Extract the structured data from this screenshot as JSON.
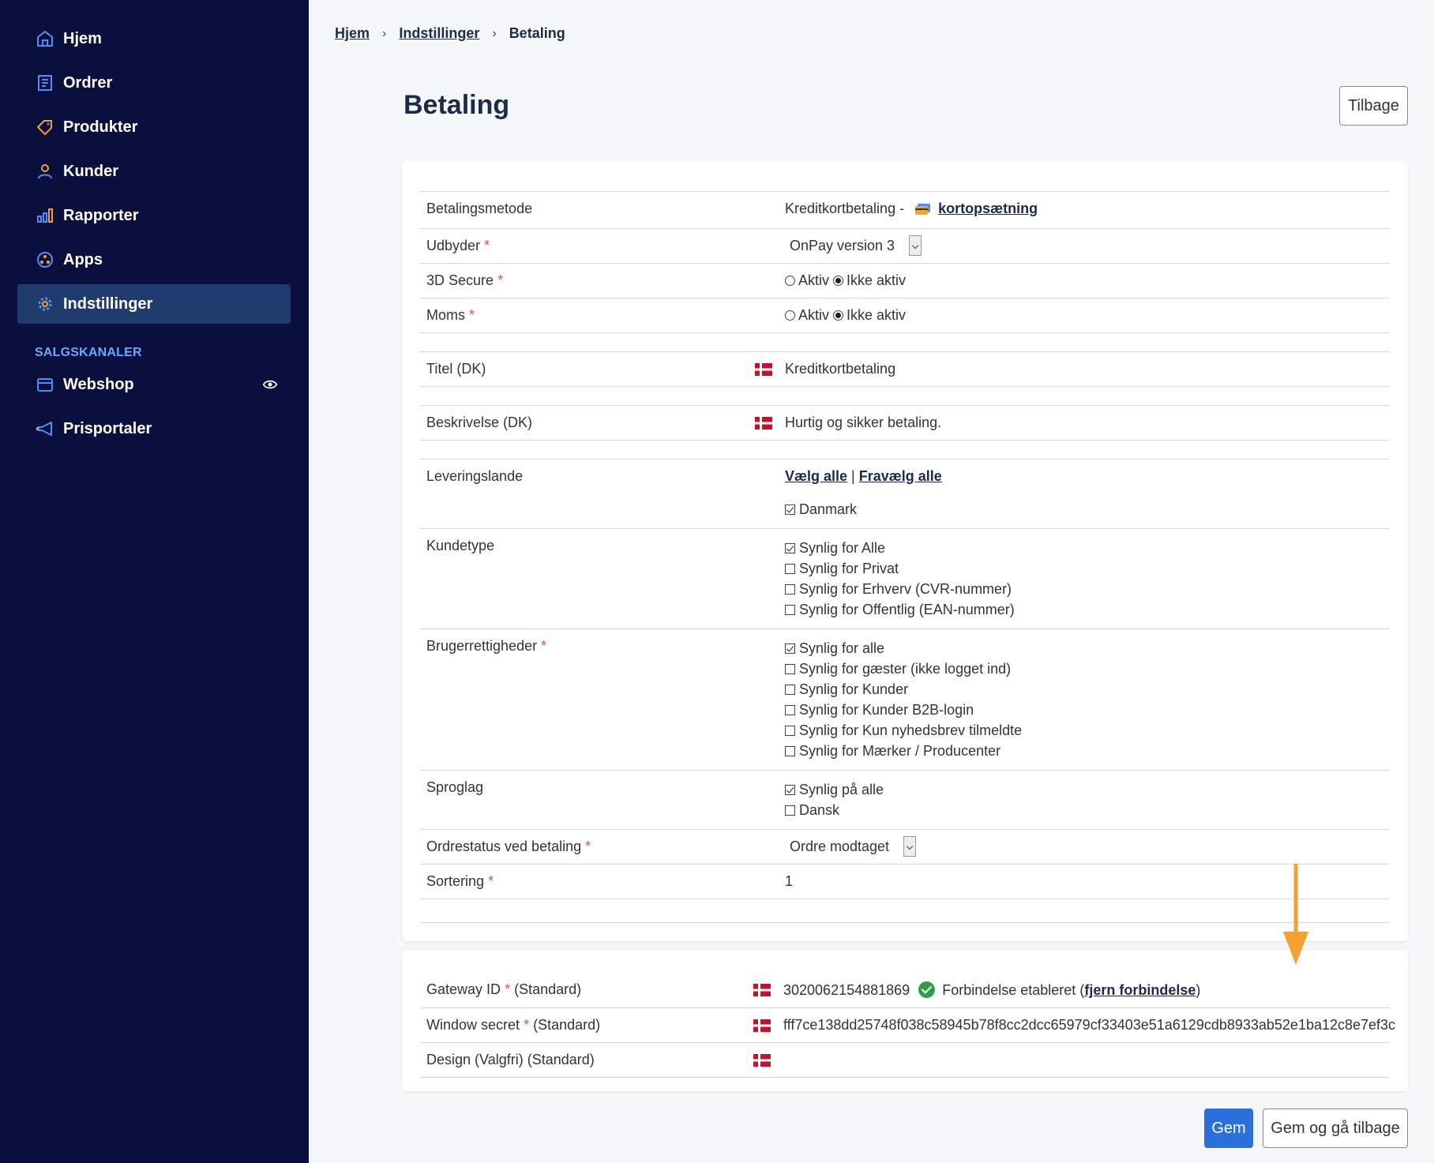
{
  "sidebar": {
    "items": [
      {
        "label": "Hjem",
        "icon": "home-icon"
      },
      {
        "label": "Ordrer",
        "icon": "orders-icon"
      },
      {
        "label": "Produkter",
        "icon": "tag-icon"
      },
      {
        "label": "Kunder",
        "icon": "user-icon"
      },
      {
        "label": "Rapporter",
        "icon": "bar-chart-icon"
      },
      {
        "label": "Apps",
        "icon": "apps-icon"
      },
      {
        "label": "Indstillinger",
        "icon": "gear-icon",
        "active": true
      }
    ],
    "section_title": "SALGSKANALER",
    "channels": [
      {
        "label": "Webshop",
        "icon": "store-icon"
      },
      {
        "label": "Prisportaler",
        "icon": "megaphone-icon"
      }
    ]
  },
  "breadcrumb": {
    "home": "Hjem",
    "settings": "Indstillinger",
    "current": "Betaling"
  },
  "page": {
    "title": "Betaling",
    "back_button": "Tilbage"
  },
  "form": {
    "payment_method": {
      "label": "Betalingsmetode",
      "value": "Kreditkortbetaling -",
      "link": "kortopsætning"
    },
    "provider": {
      "label": "Udbyder",
      "value": "OnPay version 3"
    },
    "secure3d": {
      "label": "3D Secure",
      "opt_active": "Aktiv",
      "opt_inactive": "Ikke aktiv"
    },
    "vat": {
      "label": "Moms",
      "opt_active": "Aktiv",
      "opt_inactive": "Ikke aktiv"
    },
    "title": {
      "label": "Titel (DK)",
      "value": "Kreditkortbetaling"
    },
    "description": {
      "label": "Beskrivelse (DK)",
      "value": "Hurtig og sikker betaling."
    },
    "delivery": {
      "label": "Leveringslande",
      "select_all": "Vælg alle",
      "separator": "|",
      "deselect_all": "Fravælg alle",
      "countries": [
        "Danmark"
      ]
    },
    "customer_type": {
      "label": "Kundetype",
      "options": [
        "Synlig for Alle",
        "Synlig for Privat",
        "Synlig for Erhverv (CVR-nummer)",
        "Synlig for Offentlig (EAN-nummer)"
      ]
    },
    "user_rights": {
      "label": "Brugerrettigheder",
      "options": [
        "Synlig for alle",
        "Synlig for gæster (ikke logget ind)",
        "Synlig for Kunder",
        "Synlig for Kunder B2B-login",
        "Synlig for Kun nyhedsbrev tilmeldte",
        "Synlig for Mærker / Producenter"
      ]
    },
    "language": {
      "label": "Sproglag",
      "options": [
        "Synlig på alle",
        "Dansk"
      ]
    },
    "order_status": {
      "label": "Ordrestatus ved betaling",
      "value": "Ordre modtaget"
    },
    "sorting": {
      "label": "Sortering",
      "value": "1"
    }
  },
  "gateway": {
    "gateway_id": {
      "label": "Gateway ID",
      "suffix": "(Standard)",
      "value": "3020062154881869",
      "status": "Forbindelse etableret",
      "open_paren": "(",
      "remove_link": "fjern forbindelse",
      "close_paren": ")"
    },
    "window_secret": {
      "label": "Window secret",
      "suffix": "(Standard)",
      "value": "fff7ce138dd25748f038c58945b78f8cc2dcc65979cf33403e51a6129cdb8933ab52e1ba12c8e7ef3c"
    },
    "design": {
      "label": "Design (Valgfri) (Standard)"
    }
  },
  "actions": {
    "save": "Gem",
    "save_back": "Gem og gå tilbage"
  },
  "colors": {
    "sidebar_bg": "#0b0f3d",
    "active_bg": "#1f3b6e",
    "accent": "#2a6fdb",
    "arrow": "#f5a033",
    "required": "#d9534f"
  }
}
